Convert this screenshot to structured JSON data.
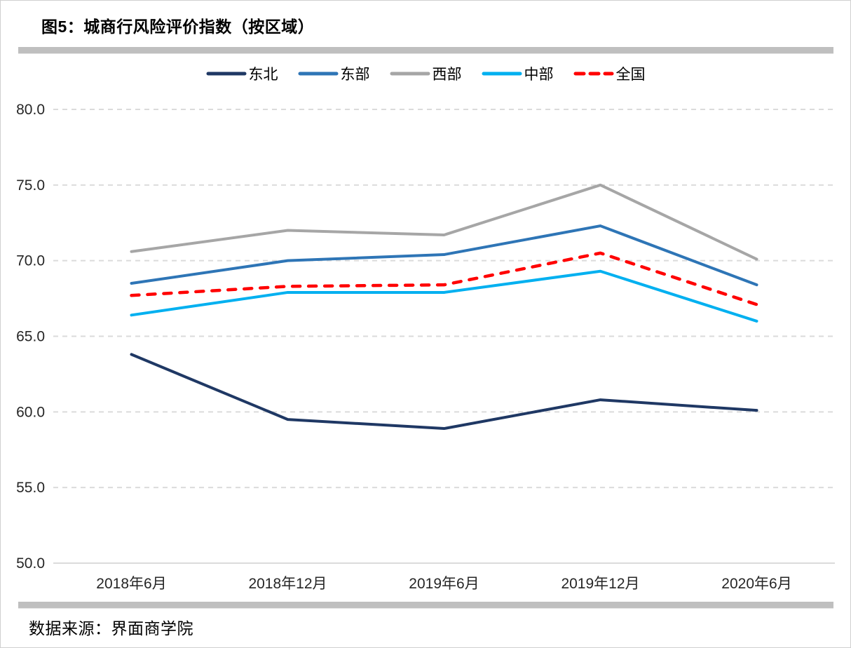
{
  "page": {
    "title": "图5：城商行风险评价指数（按区域）",
    "source": "数据来源：界面商学院"
  },
  "chart_data": {
    "type": "line",
    "title": "图5：城商行风险评价指数（按区域）",
    "categories": [
      "2018年6月",
      "2018年12月",
      "2019年6月",
      "2019年12月",
      "2020年6月"
    ],
    "series": [
      {
        "name": "东北",
        "color": "#1F3864",
        "style": "solid",
        "values": [
          63.8,
          59.5,
          58.9,
          60.8,
          60.1
        ]
      },
      {
        "name": "东部",
        "color": "#2E75B6",
        "style": "solid",
        "values": [
          68.5,
          70.0,
          70.4,
          72.3,
          68.4
        ]
      },
      {
        "name": "西部",
        "color": "#A6A6A6",
        "style": "solid",
        "values": [
          70.6,
          72.0,
          71.7,
          75.0,
          70.1
        ]
      },
      {
        "name": "中部",
        "color": "#00B0F0",
        "style": "solid",
        "values": [
          66.4,
          67.9,
          67.9,
          69.3,
          66.0
        ]
      },
      {
        "name": "全国",
        "color": "#FF0000",
        "style": "dashed",
        "values": [
          67.7,
          68.3,
          68.4,
          70.5,
          67.1
        ]
      }
    ],
    "ylim": [
      50.0,
      80.0
    ],
    "ytick_step": 5.0,
    "yticks": [
      "80.0",
      "75.0",
      "70.0",
      "65.0",
      "60.0",
      "55.0",
      "50.0"
    ],
    "grid": "horizontal-dashed",
    "gridline_color": "#DBDBDB",
    "axis_label_color": "#262626",
    "legend_position": "top-center",
    "source": "数据来源：界面商学院"
  }
}
